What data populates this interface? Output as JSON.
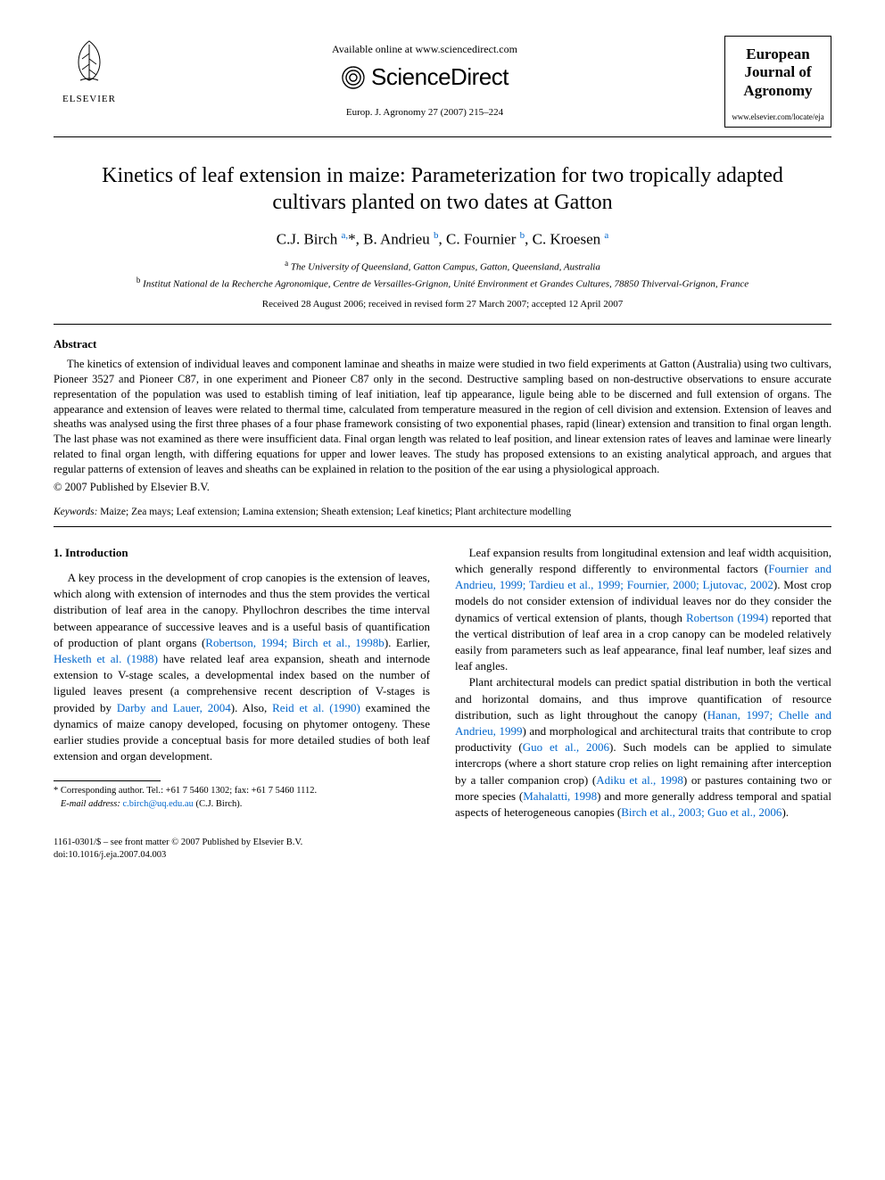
{
  "header": {
    "available_online": "Available online at www.sciencedirect.com",
    "sciencedirect": "ScienceDirect",
    "journal_ref": "Europ. J. Agronomy 27 (2007) 215–224",
    "elsevier_label": "ELSEVIER",
    "journal_box_title": "European Journal of Agronomy",
    "journal_box_url": "www.elsevier.com/locate/eja"
  },
  "title": "Kinetics of leaf extension in maize: Parameterization for two tropically adapted cultivars planted on two dates at Gatton",
  "authors_html": "C.J. Birch <sup>a,</sup>*, B. Andrieu <sup>b</sup>, C. Fournier <sup>b</sup>, C. Kroesen <sup>a</sup>",
  "affiliations": {
    "a": "The University of Queensland, Gatton Campus, Gatton, Queensland, Australia",
    "b": "Institut National de la Recherche Agronomique, Centre de Versailles-Grignon, Unité Environment et Grandes Cultures, 78850 Thiverval-Grignon, France"
  },
  "dates": "Received 28 August 2006; received in revised form 27 March 2007; accepted 12 April 2007",
  "abstract": {
    "heading": "Abstract",
    "body": "The kinetics of extension of individual leaves and component laminae and sheaths in maize were studied in two field experiments at Gatton (Australia) using two cultivars, Pioneer 3527 and Pioneer C87, in one experiment and Pioneer C87 only in the second. Destructive sampling based on non-destructive observations to ensure accurate representation of the population was used to establish timing of leaf initiation, leaf tip appearance, ligule being able to be discerned and full extension of organs. The appearance and extension of leaves were related to thermal time, calculated from temperature measured in the region of cell division and extension. Extension of leaves and sheaths was analysed using the first three phases of a four phase framework consisting of two exponential phases, rapid (linear) extension and transition to final organ length. The last phase was not examined as there were insufficient data. Final organ length was related to leaf position, and linear extension rates of leaves and laminae were linearly related to final organ length, with differing equations for upper and lower leaves. The study has proposed extensions to an existing analytical approach, and argues that regular patterns of extension of leaves and sheaths can be explained in relation to the position of the ear using a physiological approach.",
    "copyright": "© 2007 Published by Elsevier B.V."
  },
  "keywords": {
    "label": "Keywords:",
    "text": "Maize; Zea mays; Leaf extension; Lamina extension; Sheath extension; Leaf kinetics; Plant architecture modelling"
  },
  "section1": {
    "heading": "1.  Introduction",
    "left_paragraphs": [
      {
        "segments": [
          {
            "t": "A key process in the development of crop canopies is the extension of leaves, which along with extension of internodes and thus the stem provides the vertical distribution of leaf area in the canopy. Phyllochron describes the time interval between appearance of successive leaves and is a useful basis of quantification of production of plant organs ("
          },
          {
            "t": "Robertson, 1994; Birch et al., 1998b",
            "link": true
          },
          {
            "t": "). Earlier, "
          },
          {
            "t": "Hesketh et al. (1988)",
            "link": true
          },
          {
            "t": " have related leaf area expansion, sheath and internode extension to V-stage scales, a developmental index based on the number of liguled leaves present (a comprehensive recent description of V-stages is provided by "
          },
          {
            "t": "Darby and Lauer, 2004",
            "link": true
          },
          {
            "t": "). Also, "
          },
          {
            "t": "Reid et al. (1990)",
            "link": true
          },
          {
            "t": " examined the dynamics of maize canopy developed, focusing on phytomer ontogeny. These earlier studies provide a conceptual basis for more detailed studies of both leaf extension and organ development."
          }
        ]
      }
    ],
    "right_paragraphs": [
      {
        "segments": [
          {
            "t": "Leaf expansion results from longitudinal extension and leaf width acquisition, which generally respond differently to environmental factors ("
          },
          {
            "t": "Fournier and Andrieu, 1999; Tardieu et al., 1999; Fournier, 2000; Ljutovac, 2002",
            "link": true
          },
          {
            "t": "). Most crop models do not consider extension of individual leaves nor do they consider the dynamics of vertical extension of plants, though "
          },
          {
            "t": "Robertson (1994)",
            "link": true
          },
          {
            "t": " reported that the vertical distribution of leaf area in a crop canopy can be modeled relatively easily from parameters such as leaf appearance, final leaf number, leaf sizes and leaf angles."
          }
        ]
      },
      {
        "segments": [
          {
            "t": "Plant architectural models can predict spatial distribution in both the vertical and horizontal domains, and thus improve quantification of resource distribution, such as light throughout the canopy ("
          },
          {
            "t": "Hanan, 1997; Chelle and Andrieu, 1999",
            "link": true
          },
          {
            "t": ") and morphological and architectural traits that contribute to crop productivity ("
          },
          {
            "t": "Guo et al., 2006",
            "link": true
          },
          {
            "t": "). Such models can be applied to simulate intercrops (where a short stature crop relies on light remaining after interception by a taller companion crop) ("
          },
          {
            "t": "Adiku et al., 1998",
            "link": true
          },
          {
            "t": ") or pastures containing two or more species ("
          },
          {
            "t": "Mahalatti, 1998",
            "link": true
          },
          {
            "t": ") and more generally address temporal and spatial aspects of heterogeneous canopies ("
          },
          {
            "t": "Birch et al., 2003; Guo et al., 2006",
            "link": true
          },
          {
            "t": ")."
          }
        ]
      }
    ]
  },
  "footnote": {
    "corr": "Corresponding author. Tel.: +61 7 5460 1302; fax: +61 7 5460 1112.",
    "email_label": "E-mail address:",
    "email": "c.birch@uq.edu.au",
    "email_who": "(C.J. Birch)."
  },
  "footer": {
    "line1": "1161-0301/$ – see front matter © 2007 Published by Elsevier B.V.",
    "doi": "doi:10.1016/j.eja.2007.04.003"
  },
  "colors": {
    "link": "#0066cc",
    "text": "#000000",
    "background": "#ffffff"
  }
}
